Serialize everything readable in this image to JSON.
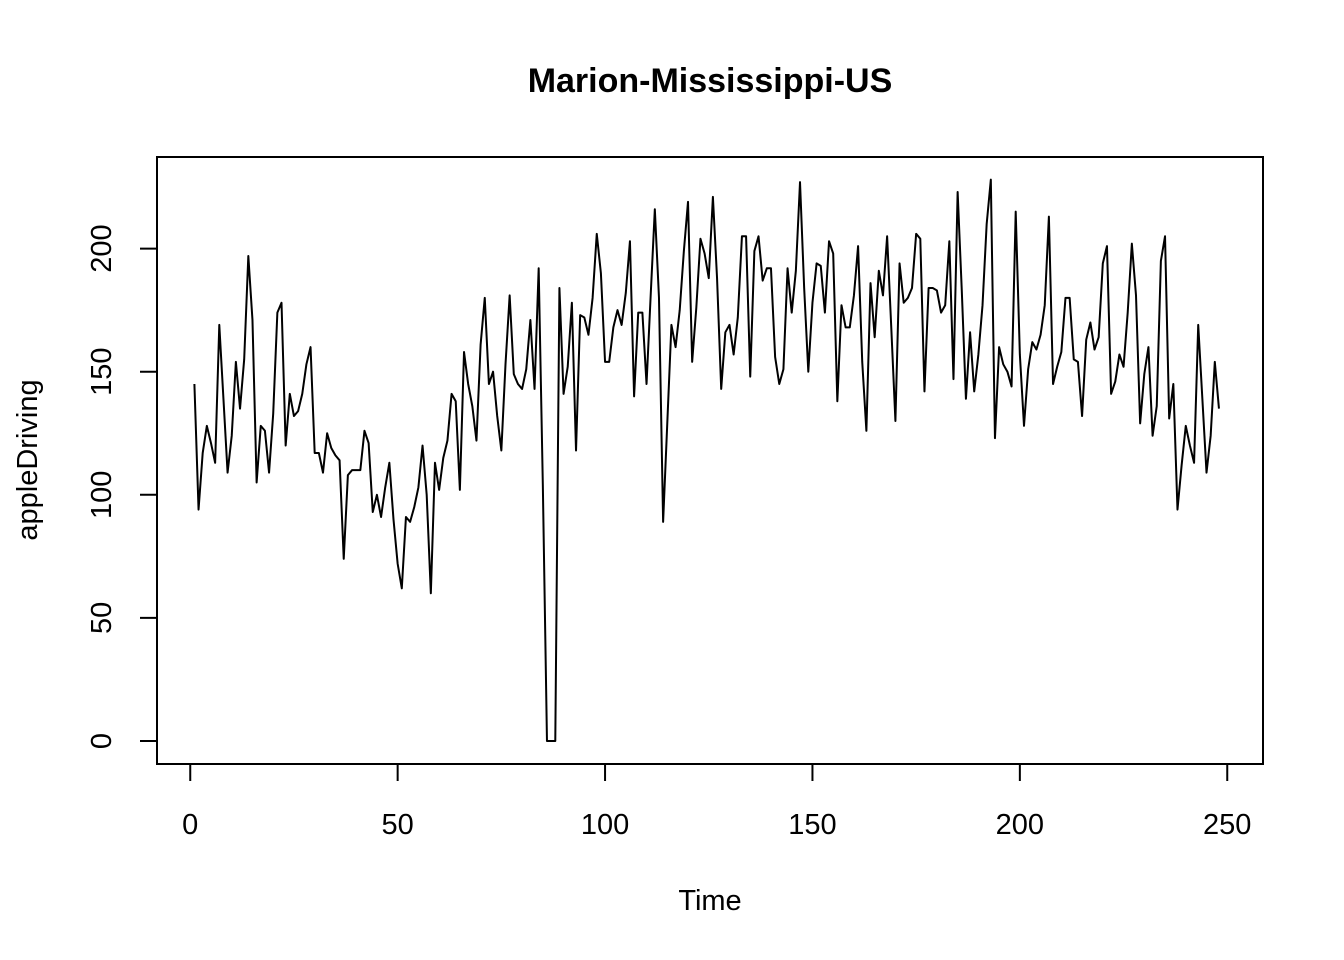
{
  "chart_data": {
    "type": "line",
    "title": "Marion-Mississippi-US",
    "xlabel": "Time",
    "ylabel": "appleDriving",
    "xlim": [
      1,
      248
    ],
    "ylim": [
      0,
      227
    ],
    "x_ticks": [
      "0",
      "50",
      "100",
      "150",
      "200",
      "250"
    ],
    "y_ticks": [
      "0",
      "50",
      "100",
      "150",
      "200"
    ],
    "grid": false,
    "line_color": "#000000",
    "series": [
      {
        "x_start": 1,
        "values": [
          145,
          94,
          117,
          128,
          121,
          113,
          169,
          139,
          109,
          124,
          154,
          135,
          155,
          197,
          171,
          105,
          128,
          126,
          109,
          133,
          174,
          178,
          120,
          141,
          132,
          134,
          141,
          153,
          160,
          117,
          117,
          109,
          125,
          119,
          116,
          114,
          74,
          108,
          110,
          110,
          110,
          126,
          121,
          93,
          100,
          91,
          103,
          113,
          90,
          72,
          62,
          91,
          89,
          95,
          103,
          120,
          100,
          60,
          113,
          102,
          115,
          122,
          141,
          138,
          102,
          158,
          145,
          136,
          122,
          161,
          180,
          145,
          150,
          132,
          118,
          153,
          181,
          149,
          145,
          143,
          151,
          171,
          143,
          192,
          104,
          0,
          0,
          0,
          184,
          141,
          152,
          178,
          118,
          173,
          172,
          165,
          180,
          206,
          190,
          154,
          154,
          168,
          175,
          169,
          182,
          203,
          140,
          174,
          174,
          145,
          181,
          216,
          180,
          89,
          129,
          169,
          160,
          175,
          199,
          219,
          154,
          176,
          204,
          198,
          188,
          221,
          188,
          143,
          166,
          169,
          157,
          172,
          205,
          205,
          148,
          199,
          205,
          187,
          192,
          192,
          156,
          145,
          151,
          192,
          174,
          191,
          227,
          184,
          150,
          178,
          194,
          193,
          174,
          203,
          198,
          138,
          177,
          168,
          168,
          181,
          201,
          154,
          126,
          186,
          164,
          191,
          181,
          205,
          168,
          130,
          194,
          178,
          180,
          184,
          206,
          204,
          142,
          184,
          184,
          183,
          174,
          177,
          203,
          147,
          223,
          183,
          139,
          166,
          142,
          157,
          177,
          210,
          228,
          123,
          160,
          153,
          150,
          144,
          215,
          157,
          128,
          151,
          162,
          159,
          165,
          177,
          213,
          145,
          152,
          158,
          180,
          180,
          155,
          154,
          132,
          163,
          170,
          159,
          164,
          194,
          201,
          141,
          146,
          157,
          152,
          174,
          202,
          181,
          129,
          149,
          160,
          124,
          136,
          195,
          205,
          131,
          145,
          94,
          112,
          128,
          120,
          113,
          169,
          139,
          109,
          124,
          154,
          135
        ]
      }
    ]
  }
}
